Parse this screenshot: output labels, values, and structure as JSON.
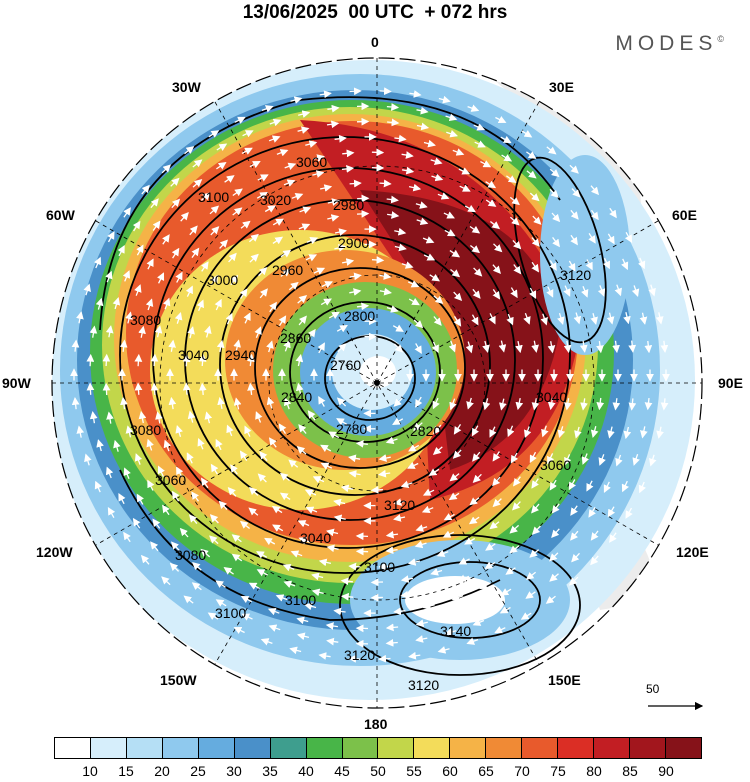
{
  "title": "13/06/2025  00 UTC  + 072 hrs",
  "brand": "MODES",
  "brand_mark": "©",
  "longitude_labels": {
    "top": "0",
    "bottom": "180",
    "left": "90W",
    "right": "90E",
    "nw": "30W",
    "ne": "30E",
    "wnw": "60W",
    "ene": "60E",
    "wsw": "120W",
    "ese": "120E",
    "sw": "150W",
    "se": "150E"
  },
  "reference_vector": "50",
  "colorbar": {
    "colors": [
      "#ffffff",
      "#d6eefb",
      "#b5dff5",
      "#8fc9ee",
      "#65acdf",
      "#4a90c9",
      "#3e9e8e",
      "#48b548",
      "#7cc14a",
      "#c2d64a",
      "#f3dc5a",
      "#f5b347",
      "#f08a35",
      "#e85a2c",
      "#db2e25",
      "#c21e23",
      "#a2161d",
      "#861219"
    ],
    "ticks": [
      "10",
      "15",
      "20",
      "25",
      "30",
      "35",
      "40",
      "45",
      "50",
      "55",
      "60",
      "65",
      "70",
      "75",
      "80",
      "85",
      "90"
    ]
  },
  "contour_labels": [
    "3060",
    "3100",
    "3020",
    "2980",
    "2900",
    "3000",
    "2940",
    "3080",
    "3040",
    "2960",
    "2800",
    "2860",
    "2760",
    "2840",
    "2780",
    "2820",
    "3040",
    "3080",
    "3060",
    "3060",
    "3080",
    "3040",
    "3100",
    "3100",
    "3100",
    "3140",
    "3120",
    "3120",
    "3120",
    "3120"
  ]
}
